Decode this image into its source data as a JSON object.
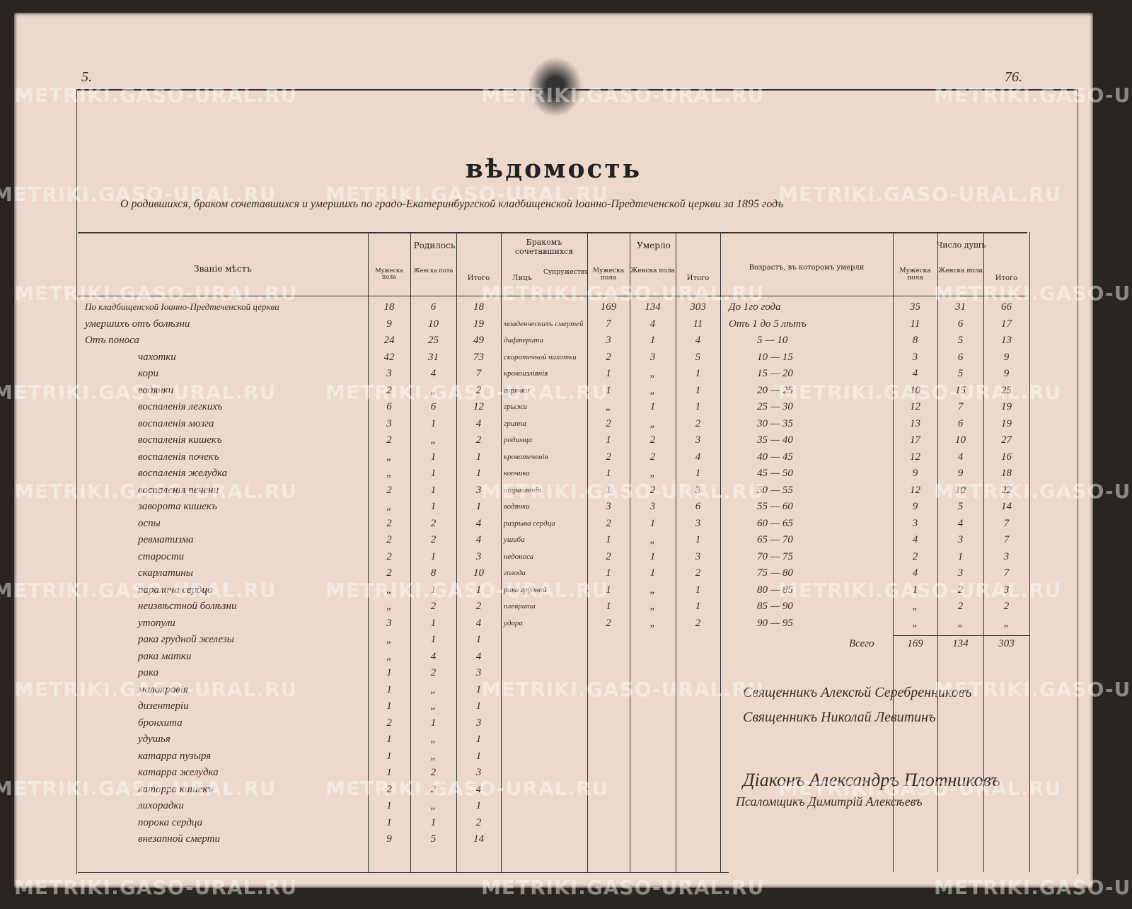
{
  "page_number_left": "5.",
  "page_number_right": "76.",
  "watermark": "METRIKI.GASO-URAL.RU",
  "header": {
    "title": "вѣдомость",
    "subtitle": "О родившихся, браком сочетавшихся и умершихъ по градо-Екатеринбургской кладбищенской Іоанно-Предтеченской церкви за 1895 годъ"
  },
  "columns": {
    "place": "Званіе мѣстъ",
    "born": "Родилось",
    "born_m": "Мужеска пола",
    "born_f": "Женска пола",
    "born_total": "Итого",
    "married": "Бракомъ сочетавшихся",
    "married_persons": "Лицъ",
    "married_couples": "Супружествъ",
    "died": "Умерло",
    "died_m": "Мужеска пола",
    "died_f": "Женска пола",
    "died_total": "Итого",
    "age": "Возрастъ, въ которомъ умерли",
    "souls": "Число душъ",
    "souls_m": "Мужеска пола",
    "souls_f": "Женска пола",
    "souls_total": "Итого"
  },
  "left_rows": [
    [
      "По кладбищенской Іоанно-Предтеченской церкви",
      "18",
      "6",
      "18"
    ],
    [
      "умершихъ отъ болѣзни",
      "9",
      "10",
      "19"
    ],
    [
      "Отъ поноса",
      "24",
      "25",
      "49"
    ],
    [
      "чахотки",
      "42",
      "31",
      "73"
    ],
    [
      "кори",
      "3",
      "4",
      "7"
    ],
    [
      "водянки",
      "2",
      "„",
      "2"
    ],
    [
      "воспаленія легкихъ",
      "6",
      "6",
      "12"
    ],
    [
      "воспаленія мозга",
      "3",
      "1",
      "4"
    ],
    [
      "воспаленія кишекъ",
      "2",
      "„",
      "2"
    ],
    [
      "воспаленія почекъ",
      "„",
      "1",
      "1"
    ],
    [
      "воспаленія желудка",
      "„",
      "1",
      "1"
    ],
    [
      "воспаленія печени",
      "2",
      "1",
      "3"
    ],
    [
      "заворота кишекъ",
      "„",
      "1",
      "1"
    ],
    [
      "оспы",
      "2",
      "2",
      "4"
    ],
    [
      "ревматизма",
      "2",
      "2",
      "4"
    ],
    [
      "старости",
      "2",
      "1",
      "3"
    ],
    [
      "скарлатины",
      "2",
      "8",
      "10"
    ],
    [
      "паралича сердца",
      "„",
      "1",
      "1"
    ],
    [
      "неизвѣстной болѣзни",
      "„",
      "2",
      "2"
    ],
    [
      "утопули",
      "3",
      "1",
      "4"
    ],
    [
      "рака грудной железы",
      "„",
      "1",
      "1"
    ],
    [
      "рака матки",
      "„",
      "4",
      "4"
    ],
    [
      "рака",
      "1",
      "2",
      "3"
    ],
    [
      "малокровія",
      "1",
      "„",
      "1"
    ],
    [
      "дизентеріи",
      "1",
      "„",
      "1"
    ],
    [
      "бронхита",
      "2",
      "1",
      "3"
    ],
    [
      "удушья",
      "1",
      "„",
      "1"
    ],
    [
      "катарра пузыря",
      "1",
      "„",
      "1"
    ],
    [
      "катарра желудка",
      "1",
      "2",
      "3"
    ],
    [
      "катарра кишекъ",
      "2",
      "2",
      "4"
    ],
    [
      "лихорадки",
      "1",
      "„",
      "1"
    ],
    [
      "порока сердца",
      "1",
      "1",
      "2"
    ],
    [
      "внезапной смерти",
      "9",
      "5",
      "14"
    ]
  ],
  "middle_rows": [
    [
      "младенческихъ смертей",
      "7",
      "4",
      "11"
    ],
    [
      "дифтерита",
      "3",
      "1",
      "4"
    ],
    [
      "скоротечной чахотки",
      "2",
      "3",
      "5"
    ],
    [
      "кровоизліянія",
      "1",
      "„",
      "1"
    ],
    [
      "горячки",
      "1",
      "„",
      "1"
    ],
    [
      "грыжи",
      "„",
      "1",
      "1"
    ],
    [
      "гриппа",
      "2",
      "„",
      "2"
    ],
    [
      "родимца",
      "1",
      "2",
      "3"
    ],
    [
      "кровотеченія",
      "2",
      "2",
      "4"
    ],
    [
      "копчика",
      "1",
      "„",
      "1"
    ],
    [
      "отравленія",
      "1",
      "2",
      "3"
    ],
    [
      "водянки",
      "3",
      "3",
      "6"
    ],
    [
      "разрыва сердца",
      "2",
      "1",
      "3"
    ],
    [
      "ушиба",
      "1",
      "„",
      "1"
    ],
    [
      "недоноса",
      "2",
      "1",
      "3"
    ],
    [
      "голода",
      "1",
      "1",
      "2"
    ],
    [
      "рака грудной",
      "1",
      "„",
      "1"
    ],
    [
      "плеврита",
      "1",
      "„",
      "1"
    ],
    [
      "удара",
      "2",
      "„",
      "2"
    ]
  ],
  "died_totals": [
    "169",
    "134",
    "303"
  ],
  "age_rows": [
    [
      "До 1го года",
      "35",
      "31",
      "66"
    ],
    [
      "Отъ 1 до 5 лѣтъ",
      "11",
      "6",
      "17"
    ],
    [
      "5 — 10",
      "8",
      "5",
      "13"
    ],
    [
      "10 — 15",
      "3",
      "6",
      "9"
    ],
    [
      "15 — 20",
      "4",
      "5",
      "9"
    ],
    [
      "20 — 25",
      "10",
      "15",
      "25"
    ],
    [
      "25 — 30",
      "12",
      "7",
      "19"
    ],
    [
      "30 — 35",
      "13",
      "6",
      "19"
    ],
    [
      "35 — 40",
      "17",
      "10",
      "27"
    ],
    [
      "40 — 45",
      "12",
      "4",
      "16"
    ],
    [
      "45 — 50",
      "9",
      "9",
      "18"
    ],
    [
      "50 — 55",
      "12",
      "10",
      "22"
    ],
    [
      "55 — 60",
      "9",
      "5",
      "14"
    ],
    [
      "60 — 65",
      "3",
      "4",
      "7"
    ],
    [
      "65 — 70",
      "4",
      "3",
      "7"
    ],
    [
      "70 — 75",
      "2",
      "1",
      "3"
    ],
    [
      "75 — 80",
      "4",
      "3",
      "7"
    ],
    [
      "80 — 85",
      "1",
      "2",
      "3"
    ],
    [
      "85 — 90",
      "„",
      "2",
      "2"
    ],
    [
      "90 — 95",
      "„",
      "„",
      "„"
    ]
  ],
  "age_total": [
    "Всего",
    "169",
    "134",
    "303"
  ],
  "signatures": [
    "Священникъ Алексѣй Серебренниковъ",
    "Священникъ Николай Левитинъ",
    "Діаконъ Александръ Плотниковъ",
    "Псаломщикъ Димитрій Алексѣевъ"
  ]
}
